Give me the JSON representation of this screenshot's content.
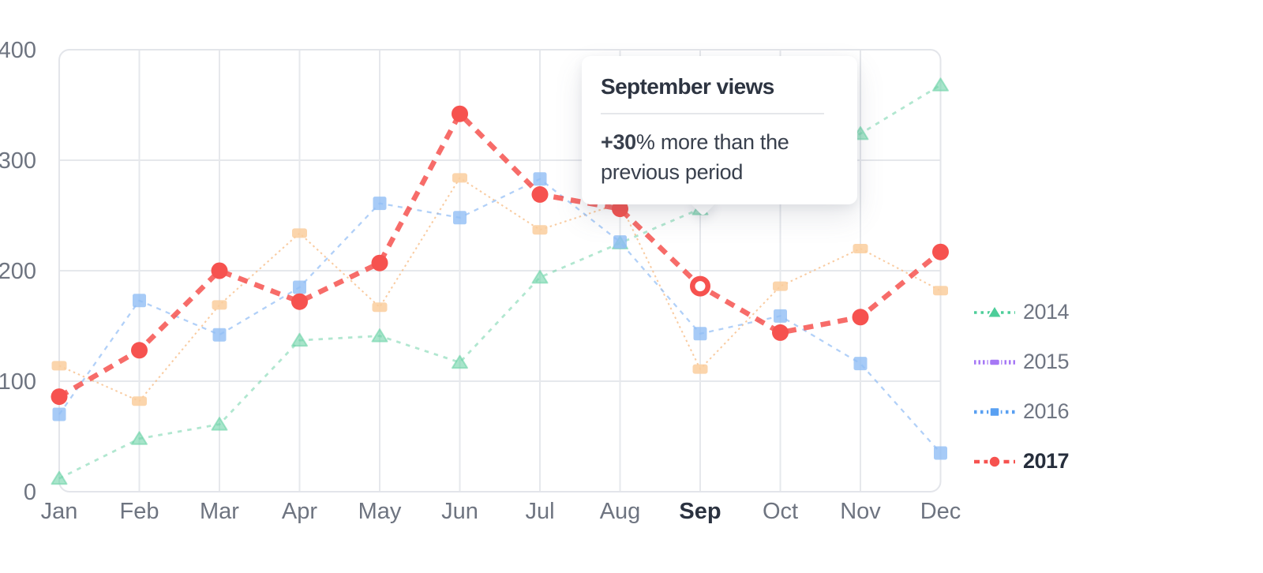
{
  "chart_data": {
    "type": "line",
    "categories": [
      "Jan",
      "Feb",
      "Mar",
      "Apr",
      "May",
      "Jun",
      "Jul",
      "Aug",
      "Sep",
      "Oct",
      "Nov",
      "Dec"
    ],
    "yaxis": {
      "ticks": [
        0,
        100,
        200,
        300,
        400
      ],
      "min": 0,
      "max": 400,
      "grid": true
    },
    "xaxis": {
      "grid": true,
      "emphasized_category": "Sep"
    },
    "series": [
      {
        "name": "2014",
        "marker": "triangle",
        "line_style": "dotted",
        "color": "#4ccd99",
        "line_color": "rgba(99,208,162,0.5)",
        "marker_color": "rgba(110,212,168,0.6)",
        "values": [
          12,
          48,
          61,
          137,
          141,
          117,
          194,
          225,
          256,
          290,
          324,
          368
        ]
      },
      {
        "name": "",
        "in_legend": false,
        "marker": "square-wide",
        "line_style": "fine-dotted",
        "color": "#f9c795",
        "line_color": "rgba(247,190,136,0.8)",
        "marker_color": "rgba(250,206,158,0.85)",
        "values": [
          114,
          82,
          169,
          234,
          167,
          284,
          237,
          261,
          111,
          186,
          220,
          182
        ]
      },
      {
        "name": "2016",
        "marker": "square",
        "line_style": "dashed",
        "color": "#59a0f2",
        "line_color": "rgba(140,186,245,0.68)",
        "marker_color": "rgba(145,190,245,0.8)",
        "values": [
          70,
          173,
          142,
          185,
          261,
          248,
          283,
          226,
          143,
          159,
          116,
          35
        ]
      },
      {
        "name": "2017",
        "emphasized": true,
        "marker": "circle",
        "line_style": "dashed-thick",
        "color": "#f6524f",
        "line_color": "rgba(246,82,79,0.85)",
        "marker_color": "#f6524f",
        "values": [
          86,
          128,
          200,
          172,
          207,
          342,
          269,
          256,
          186,
          144,
          158,
          217
        ],
        "highlight_point": {
          "category": "Sep",
          "style": "hollow"
        }
      }
    ],
    "legend": [
      {
        "label": "2014",
        "color": "#4ccd99",
        "marker": "triangle",
        "line_style": "dotted",
        "emphasized": false
      },
      {
        "label": "2015",
        "color": "#a678f5",
        "marker": "square-wide",
        "line_style": "fine-dotted",
        "emphasized": false
      },
      {
        "label": "2016",
        "color": "#59a0f2",
        "marker": "square",
        "line_style": "dotted",
        "emphasized": false
      },
      {
        "label": "2017",
        "color": "#f6524f",
        "marker": "circle",
        "line_style": "dashed",
        "emphasized": true
      }
    ]
  },
  "tooltip": {
    "title": "September views",
    "delta": "+30",
    "body": "% more than the previous period"
  },
  "colors": {
    "axis_text": "#6e7480",
    "axis_text_emphasis": "#2b3240",
    "grid": "#e6e8ec",
    "plot_border": "#e3e5ea",
    "background": "#ffffff"
  }
}
